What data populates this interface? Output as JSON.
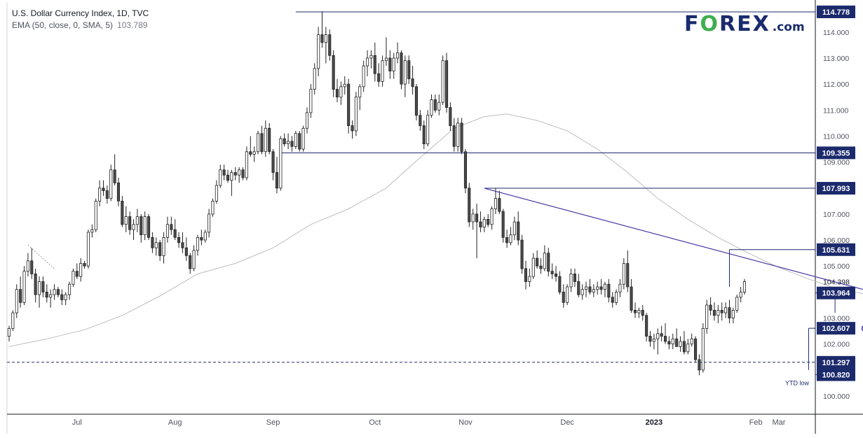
{
  "header": {
    "title": "U.S. Dollar Currency Index, 1D, TVC",
    "indicator": "EMA (50, close, 0, SMA, 5)",
    "indicator_value": "103.789"
  },
  "logo": {
    "part1": "F",
    "part2": "O",
    "part3": "REX",
    "suffix": ".com"
  },
  "colors": {
    "up": "#ffffff",
    "down": "#4a4a4a",
    "wick": "#222222",
    "ema": "#bdbdbd",
    "level": "#1b2a6b",
    "trend": "#4a3aa8",
    "arrow": "#a89ad8",
    "label_bg": "#1b2a6b",
    "axis_text": "#131722"
  },
  "chart_data": {
    "type": "candlestick",
    "title": "U.S. Dollar Currency Index, 1D, TVC",
    "ylim": [
      99.3,
      115.1
    ],
    "y_ticks": [
      100,
      101,
      102,
      103,
      104,
      105,
      106,
      107,
      108,
      109,
      110,
      111,
      112,
      113,
      114
    ],
    "y_tick_labels": [
      "100.000",
      "101.000",
      "102.000",
      "103.000",
      "104.000",
      "105.000",
      "106.000",
      "107.000",
      "108.000",
      "109.000",
      "110.000",
      "111.000",
      "112.000",
      "113.000",
      "114.000"
    ],
    "x_tick_labels": [
      "Jul",
      "Aug",
      "Sep",
      "Oct",
      "Nov",
      "Dec",
      "2023",
      "Feb",
      "Mar"
    ],
    "current_price": "104.398",
    "levels": [
      {
        "value": 114.778,
        "label": "114.778",
        "style": "solid"
      },
      {
        "value": 109.355,
        "label": "109.355",
        "style": "solid"
      },
      {
        "value": 107.993,
        "label": "107.993",
        "style": "solid"
      },
      {
        "value": 105.631,
        "label": "105.631",
        "style": "solid"
      },
      {
        "value": 103.964,
        "label": "103.964",
        "style": "solid"
      },
      {
        "value": 102.607,
        "label": "102.607",
        "style": "solid"
      },
      {
        "value": 101.297,
        "label": "101.297",
        "style": "dashed"
      },
      {
        "value": 100.82,
        "label": "100.820",
        "style": "solid"
      }
    ],
    "annotations": [
      {
        "text": "YTD low"
      }
    ],
    "ema_series": [
      {
        "i": 0,
        "v": 101.9
      },
      {
        "i": 10,
        "v": 102.2
      },
      {
        "i": 20,
        "v": 102.55
      },
      {
        "i": 30,
        "v": 103.1
      },
      {
        "i": 40,
        "v": 103.85
      },
      {
        "i": 50,
        "v": 104.7
      },
      {
        "i": 60,
        "v": 105.1
      },
      {
        "i": 70,
        "v": 105.7
      },
      {
        "i": 80,
        "v": 106.6
      },
      {
        "i": 90,
        "v": 107.2
      },
      {
        "i": 100,
        "v": 108.0
      },
      {
        "i": 110,
        "v": 109.3
      },
      {
        "i": 118,
        "v": 110.3
      },
      {
        "i": 126,
        "v": 110.75
      },
      {
        "i": 132,
        "v": 110.85
      },
      {
        "i": 140,
        "v": 110.6
      },
      {
        "i": 148,
        "v": 110.2
      },
      {
        "i": 156,
        "v": 109.5
      },
      {
        "i": 164,
        "v": 108.6
      },
      {
        "i": 172,
        "v": 107.6
      },
      {
        "i": 180,
        "v": 106.8
      },
      {
        "i": 188,
        "v": 106.1
      },
      {
        "i": 196,
        "v": 105.5
      },
      {
        "i": 204,
        "v": 104.95
      },
      {
        "i": 212,
        "v": 104.5
      },
      {
        "i": 220,
        "v": 104.1
      },
      {
        "i": 230,
        "v": 103.85
      },
      {
        "i": 240,
        "v": 103.75
      }
    ],
    "candles": [
      [
        102.3,
        102.7,
        102.1,
        102.6
      ],
      [
        102.6,
        103.3,
        102.5,
        103.2
      ],
      [
        103.2,
        104.3,
        103.0,
        104.1
      ],
      [
        104.1,
        104.6,
        103.4,
        103.6
      ],
      [
        103.6,
        105.0,
        103.5,
        104.8
      ],
      [
        104.8,
        105.5,
        104.6,
        105.2
      ],
      [
        105.2,
        105.7,
        104.5,
        104.7
      ],
      [
        104.7,
        104.9,
        103.6,
        103.9
      ],
      [
        103.9,
        104.6,
        103.4,
        104.4
      ],
      [
        104.4,
        104.6,
        103.8,
        104.0
      ],
      [
        104.0,
        104.3,
        103.6,
        103.8
      ],
      [
        103.8,
        104.1,
        103.4,
        103.9
      ],
      [
        103.9,
        104.3,
        103.7,
        104.1
      ],
      [
        104.1,
        104.2,
        103.8,
        103.9
      ],
      [
        103.9,
        104.1,
        103.5,
        103.7
      ],
      [
        103.7,
        104.0,
        103.5,
        103.9
      ],
      [
        103.9,
        104.4,
        103.7,
        104.3
      ],
      [
        104.3,
        104.9,
        104.2,
        104.8
      ],
      [
        104.8,
        105.1,
        104.5,
        104.6
      ],
      [
        104.6,
        105.3,
        104.4,
        105.1
      ],
      [
        105.1,
        105.2,
        104.9,
        105.0
      ],
      [
        105.0,
        106.4,
        104.9,
        106.3
      ],
      [
        106.3,
        106.6,
        106.1,
        106.4
      ],
      [
        106.4,
        107.6,
        106.3,
        107.5
      ],
      [
        107.5,
        108.3,
        107.3,
        108.0
      ],
      [
        108.0,
        108.3,
        107.7,
        107.9
      ],
      [
        107.9,
        108.1,
        107.4,
        107.6
      ],
      [
        107.6,
        108.9,
        107.5,
        108.7
      ],
      [
        108.7,
        109.3,
        108.1,
        108.2
      ],
      [
        108.2,
        108.4,
        107.3,
        107.5
      ],
      [
        107.5,
        107.7,
        106.5,
        106.6
      ],
      [
        106.6,
        107.3,
        106.3,
        106.9
      ],
      [
        106.9,
        107.1,
        106.2,
        106.4
      ],
      [
        106.4,
        106.8,
        106.0,
        106.6
      ],
      [
        106.6,
        107.2,
        106.3,
        106.9
      ],
      [
        106.9,
        107.0,
        105.9,
        106.2
      ],
      [
        106.2,
        107.1,
        106.0,
        106.9
      ],
      [
        106.9,
        107.0,
        106.0,
        106.1
      ],
      [
        106.1,
        106.3,
        105.5,
        105.7
      ],
      [
        105.7,
        106.1,
        105.4,
        105.9
      ],
      [
        105.9,
        106.0,
        105.2,
        105.4
      ],
      [
        105.4,
        106.3,
        105.1,
        106.1
      ],
      [
        106.1,
        106.9,
        105.9,
        106.6
      ],
      [
        106.6,
        106.9,
        106.2,
        106.4
      ],
      [
        106.4,
        106.8,
        106.0,
        106.1
      ],
      [
        106.1,
        106.3,
        105.7,
        105.9
      ],
      [
        105.9,
        106.3,
        105.5,
        105.7
      ],
      [
        105.7,
        106.1,
        105.2,
        105.4
      ],
      [
        105.4,
        105.5,
        104.7,
        104.9
      ],
      [
        104.9,
        105.8,
        104.8,
        105.6
      ],
      [
        105.6,
        106.2,
        105.4,
        106.1
      ],
      [
        106.1,
        106.4,
        105.8,
        106.0
      ],
      [
        106.0,
        106.4,
        105.9,
        106.3
      ],
      [
        106.3,
        107.2,
        106.1,
        107.0
      ],
      [
        107.0,
        107.6,
        106.9,
        107.5
      ],
      [
        107.5,
        108.3,
        107.4,
        108.1
      ],
      [
        108.1,
        108.9,
        108.0,
        108.7
      ],
      [
        108.7,
        108.9,
        108.3,
        108.5
      ],
      [
        108.5,
        108.7,
        108.2,
        108.3
      ],
      [
        108.3,
        108.7,
        107.7,
        108.6
      ],
      [
        108.6,
        108.8,
        108.3,
        108.5
      ],
      [
        108.5,
        108.8,
        108.2,
        108.7
      ],
      [
        108.7,
        108.8,
        108.3,
        108.4
      ],
      [
        108.4,
        109.6,
        108.3,
        109.4
      ],
      [
        109.4,
        110.0,
        109.2,
        109.3
      ],
      [
        109.3,
        109.6,
        109.0,
        109.4
      ],
      [
        109.4,
        110.2,
        109.3,
        110.1
      ],
      [
        110.1,
        110.4,
        109.3,
        109.4
      ],
      [
        109.4,
        110.6,
        109.2,
        110.3
      ],
      [
        110.3,
        110.5,
        109.3,
        109.4
      ],
      [
        109.4,
        109.5,
        108.3,
        108.6
      ],
      [
        108.6,
        109.2,
        107.8,
        108.0
      ],
      [
        108.0,
        110.0,
        107.9,
        109.9
      ],
      [
        109.9,
        110.1,
        109.6,
        109.7
      ],
      [
        109.7,
        110.1,
        109.5,
        109.8
      ],
      [
        109.8,
        110.0,
        109.4,
        109.6
      ],
      [
        109.6,
        110.2,
        109.5,
        110.1
      ],
      [
        110.1,
        110.2,
        109.4,
        109.5
      ],
      [
        109.5,
        110.4,
        109.4,
        110.3
      ],
      [
        110.3,
        111.1,
        110.1,
        110.9
      ],
      [
        110.9,
        112.0,
        110.7,
        111.8
      ],
      [
        111.8,
        112.8,
        111.6,
        112.6
      ],
      [
        112.6,
        114.2,
        112.3,
        113.9
      ],
      [
        113.9,
        114.8,
        113.4,
        113.6
      ],
      [
        113.6,
        114.2,
        112.8,
        113.9
      ],
      [
        113.9,
        114.1,
        112.9,
        113.1
      ],
      [
        113.1,
        113.3,
        111.5,
        111.8
      ],
      [
        111.8,
        112.2,
        111.3,
        111.5
      ],
      [
        111.5,
        112.1,
        111.2,
        111.9
      ],
      [
        111.9,
        112.3,
        111.6,
        112.0
      ],
      [
        112.0,
        112.2,
        110.1,
        110.4
      ],
      [
        110.4,
        110.6,
        109.9,
        110.2
      ],
      [
        110.2,
        111.7,
        110.0,
        111.5
      ],
      [
        111.5,
        112.0,
        111.0,
        111.9
      ],
      [
        111.9,
        112.9,
        111.7,
        112.7
      ],
      [
        112.7,
        113.3,
        112.3,
        113.0
      ],
      [
        113.0,
        113.3,
        112.6,
        113.1
      ],
      [
        113.1,
        113.6,
        112.1,
        112.4
      ],
      [
        112.4,
        112.8,
        111.9,
        112.1
      ],
      [
        112.1,
        113.1,
        111.9,
        112.9
      ],
      [
        112.9,
        113.8,
        112.7,
        113.0
      ],
      [
        113.0,
        113.3,
        112.2,
        112.5
      ],
      [
        112.5,
        113.2,
        112.2,
        113.0
      ],
      [
        113.0,
        113.6,
        112.8,
        113.2
      ],
      [
        113.2,
        113.3,
        111.8,
        112.0
      ],
      [
        112.0,
        113.1,
        111.5,
        112.9
      ],
      [
        112.9,
        113.1,
        112.0,
        112.2
      ],
      [
        112.2,
        112.7,
        111.6,
        111.9
      ],
      [
        111.9,
        112.0,
        110.6,
        110.8
      ],
      [
        110.8,
        111.0,
        110.2,
        110.4
      ],
      [
        110.4,
        110.6,
        109.5,
        109.7
      ],
      [
        109.7,
        111.0,
        109.6,
        110.8
      ],
      [
        110.8,
        111.6,
        110.7,
        111.4
      ],
      [
        111.4,
        111.6,
        110.9,
        111.0
      ],
      [
        111.0,
        111.6,
        110.8,
        111.3
      ],
      [
        111.3,
        113.1,
        111.2,
        112.9
      ],
      [
        112.9,
        113.2,
        110.9,
        111.1
      ],
      [
        111.1,
        111.3,
        110.2,
        110.4
      ],
      [
        110.4,
        110.7,
        109.4,
        109.6
      ],
      [
        109.6,
        110.7,
        109.4,
        110.5
      ],
      [
        110.5,
        110.7,
        109.3,
        109.4
      ],
      [
        109.4,
        109.5,
        107.8,
        108.0
      ],
      [
        108.0,
        108.2,
        106.5,
        106.7
      ],
      [
        106.7,
        107.2,
        106.4,
        107.0
      ],
      [
        107.0,
        107.4,
        105.3,
        106.7
      ],
      [
        106.7,
        107.1,
        106.3,
        106.5
      ],
      [
        106.5,
        106.9,
        106.3,
        106.8
      ],
      [
        106.8,
        107.0,
        106.5,
        106.6
      ],
      [
        106.6,
        107.3,
        106.4,
        107.2
      ],
      [
        107.2,
        108.0,
        107.0,
        107.6
      ],
      [
        107.6,
        107.9,
        107.0,
        107.1
      ],
      [
        107.1,
        107.2,
        105.9,
        106.1
      ],
      [
        106.1,
        106.4,
        105.7,
        105.9
      ],
      [
        105.9,
        106.5,
        105.8,
        106.2
      ],
      [
        106.2,
        106.9,
        106.0,
        106.7
      ],
      [
        106.7,
        107.1,
        105.8,
        106.0
      ],
      [
        106.0,
        106.2,
        104.7,
        104.9
      ],
      [
        104.9,
        105.2,
        104.1,
        104.4
      ],
      [
        104.4,
        104.9,
        104.2,
        104.6
      ],
      [
        104.6,
        105.5,
        104.5,
        105.3
      ],
      [
        105.3,
        105.6,
        104.9,
        105.0
      ],
      [
        105.0,
        105.3,
        104.7,
        104.9
      ],
      [
        104.9,
        105.8,
        104.8,
        105.5
      ],
      [
        105.5,
        105.7,
        104.6,
        104.8
      ],
      [
        104.8,
        105.1,
        104.5,
        104.7
      ],
      [
        104.7,
        105.0,
        104.4,
        104.6
      ],
      [
        104.6,
        104.8,
        103.9,
        104.0
      ],
      [
        104.0,
        104.3,
        103.4,
        103.6
      ],
      [
        103.6,
        104.3,
        103.5,
        104.2
      ],
      [
        104.2,
        104.9,
        104.0,
        104.7
      ],
      [
        104.7,
        104.9,
        104.2,
        104.4
      ],
      [
        104.4,
        104.7,
        103.8,
        103.9
      ],
      [
        103.9,
        104.3,
        103.7,
        104.1
      ],
      [
        104.1,
        104.4,
        103.8,
        104.2
      ],
      [
        104.2,
        104.5,
        103.9,
        104.0
      ],
      [
        104.0,
        104.3,
        103.8,
        104.1
      ],
      [
        104.1,
        104.4,
        103.9,
        104.2
      ],
      [
        104.2,
        104.5,
        103.9,
        104.1
      ],
      [
        104.1,
        104.4,
        103.8,
        104.3
      ],
      [
        104.3,
        104.5,
        103.6,
        103.8
      ],
      [
        103.8,
        104.0,
        103.4,
        103.6
      ],
      [
        103.6,
        104.1,
        103.5,
        104.0
      ],
      [
        104.0,
        104.5,
        103.8,
        104.3
      ],
      [
        104.3,
        105.3,
        104.1,
        105.1
      ],
      [
        105.1,
        105.6,
        104.0,
        104.2
      ],
      [
        104.2,
        104.5,
        103.2,
        103.3
      ],
      [
        103.3,
        103.6,
        103.0,
        103.2
      ],
      [
        103.2,
        103.4,
        103.0,
        103.3
      ],
      [
        103.3,
        103.5,
        102.9,
        103.1
      ],
      [
        103.1,
        103.2,
        102.1,
        102.3
      ],
      [
        102.3,
        102.5,
        101.9,
        102.1
      ],
      [
        102.1,
        102.4,
        101.8,
        102.2
      ],
      [
        102.2,
        102.6,
        101.6,
        102.4
      ],
      [
        102.4,
        102.7,
        102.1,
        102.3
      ],
      [
        102.3,
        102.8,
        102.0,
        102.1
      ],
      [
        102.1,
        102.3,
        101.8,
        102.0
      ],
      [
        102.0,
        102.4,
        101.8,
        102.2
      ],
      [
        102.2,
        102.6,
        101.9,
        101.9
      ],
      [
        101.9,
        102.3,
        101.7,
        102.1
      ],
      [
        102.1,
        102.5,
        101.6,
        101.7
      ],
      [
        101.7,
        102.2,
        101.6,
        102.0
      ],
      [
        102.0,
        102.4,
        101.9,
        102.2
      ],
      [
        102.2,
        102.3,
        101.3,
        101.4
      ],
      [
        101.4,
        101.6,
        100.8,
        101.0
      ],
      [
        101.0,
        102.8,
        100.9,
        102.6
      ],
      [
        102.6,
        103.7,
        102.4,
        103.5
      ],
      [
        103.5,
        103.8,
        103.1,
        103.3
      ],
      [
        103.3,
        103.6,
        102.9,
        103.1
      ],
      [
        103.1,
        103.5,
        102.8,
        103.3
      ],
      [
        103.3,
        103.6,
        102.9,
        103.2
      ],
      [
        103.2,
        103.6,
        103.0,
        103.4
      ],
      [
        103.4,
        103.7,
        102.8,
        103.0
      ],
      [
        103.0,
        103.4,
        102.8,
        103.3
      ],
      [
        103.3,
        103.9,
        103.2,
        103.8
      ],
      [
        103.8,
        104.2,
        103.6,
        104.0
      ],
      [
        104.0,
        104.5,
        103.9,
        104.4
      ]
    ]
  }
}
